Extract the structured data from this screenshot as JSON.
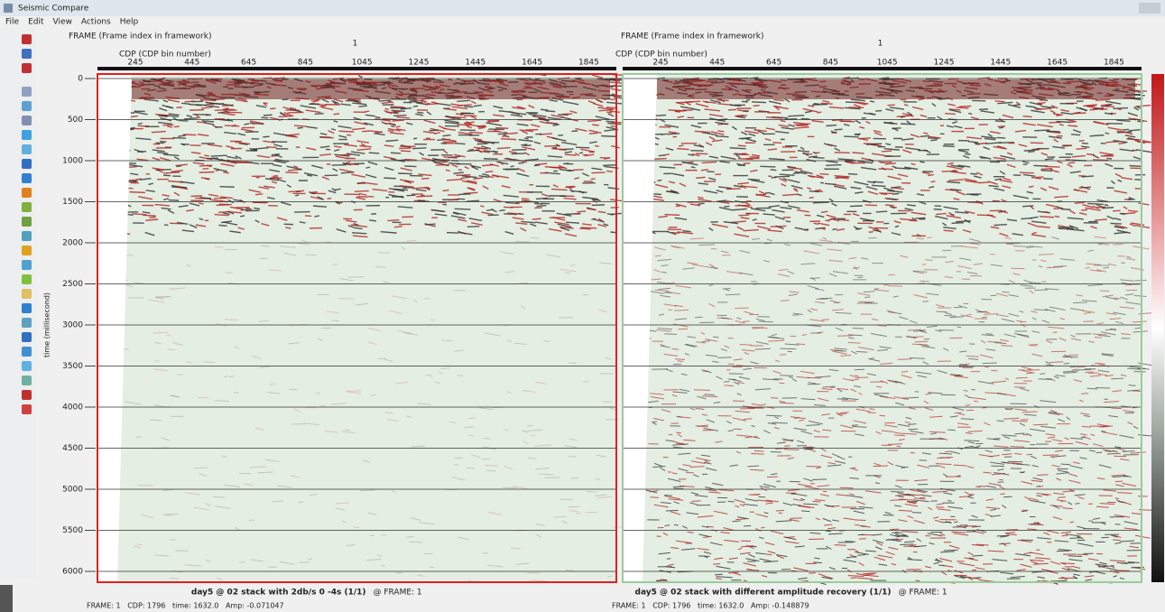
{
  "window": {
    "title": "Seismic Compare"
  },
  "menu": [
    "File",
    "Edit",
    "View",
    "Actions",
    "Help"
  ],
  "time_axis": {
    "label": "time (millisecond)",
    "ticks": [
      "0",
      "500",
      "1000",
      "1500",
      "2000",
      "2500",
      "3000",
      "3500",
      "4000",
      "4500",
      "5000",
      "5500",
      "6000"
    ]
  },
  "panels": [
    {
      "frame_label": "FRAME (Frame index in framework)",
      "frame_value": "1",
      "cdp_label": "CDP (CDP bin number)",
      "cdp_ticks": [
        "245",
        "445",
        "645",
        "845",
        "1045",
        "1245",
        "1445",
        "1645",
        "1845"
      ],
      "caption": "day5 @ 02 stack with 2db/s 0 -4s (1/1)",
      "caption_frame": "@ FRAME: 1",
      "status": "FRAME: 1   CDP: 1796   time: 1632.0   Amp: -0.071047"
    },
    {
      "frame_label": "FRAME (Frame index in framework)",
      "frame_value": "1",
      "cdp_label": "CDP (CDP bin number)",
      "cdp_ticks": [
        "245",
        "445",
        "645",
        "845",
        "1045",
        "1245",
        "1445",
        "1645",
        "1845"
      ],
      "caption": "day5 @ 02 stack with different amplitude recovery (1/1)",
      "caption_frame": "@ FRAME: 1",
      "status": "FRAME: 1   CDP: 1796   time: 1632.0   Amp: -0.148879"
    }
  ]
}
